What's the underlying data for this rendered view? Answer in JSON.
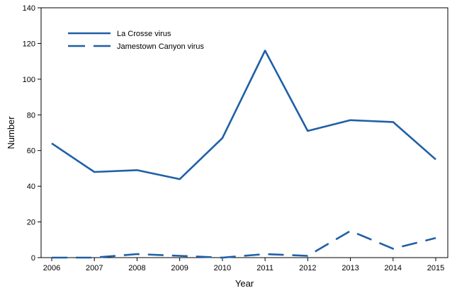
{
  "chart_data": {
    "type": "line",
    "title": "",
    "xlabel": "Year",
    "ylabel": "Number",
    "x": [
      "2006",
      "2007",
      "2008",
      "2009",
      "2010",
      "2011",
      "2012",
      "2013",
      "2014",
      "2015"
    ],
    "ylim": [
      0,
      140
    ],
    "yticks": [
      0,
      20,
      40,
      60,
      80,
      100,
      120,
      140
    ],
    "grid": false,
    "legend_position": "top-left",
    "series": [
      {
        "name": "La Crosse virus",
        "style": "solid",
        "color": "#1f5fa6",
        "values": [
          64,
          48,
          49,
          44,
          67,
          116,
          71,
          77,
          76,
          55
        ]
      },
      {
        "name": "Jamestown Canyon virus",
        "style": "dashed",
        "color": "#1f5fa6",
        "values": [
          0,
          0,
          2,
          1,
          0,
          2,
          1,
          15,
          5,
          11
        ]
      }
    ]
  }
}
